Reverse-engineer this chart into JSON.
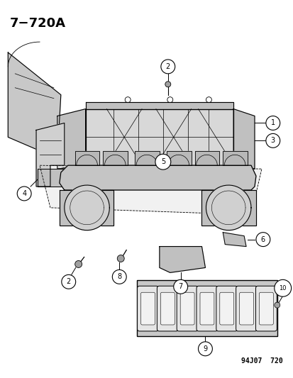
{
  "title": "7−720A",
  "watermark": "94J07  720",
  "bg_color": "#ffffff",
  "fig_width": 4.14,
  "fig_height": 5.33,
  "dpi": 100,
  "line_color": "#000000",
  "text_color": "#000000",
  "gray_light": "#d8d8d8",
  "gray_mid": "#c0c0c0",
  "gray_dark": "#a0a0a0"
}
